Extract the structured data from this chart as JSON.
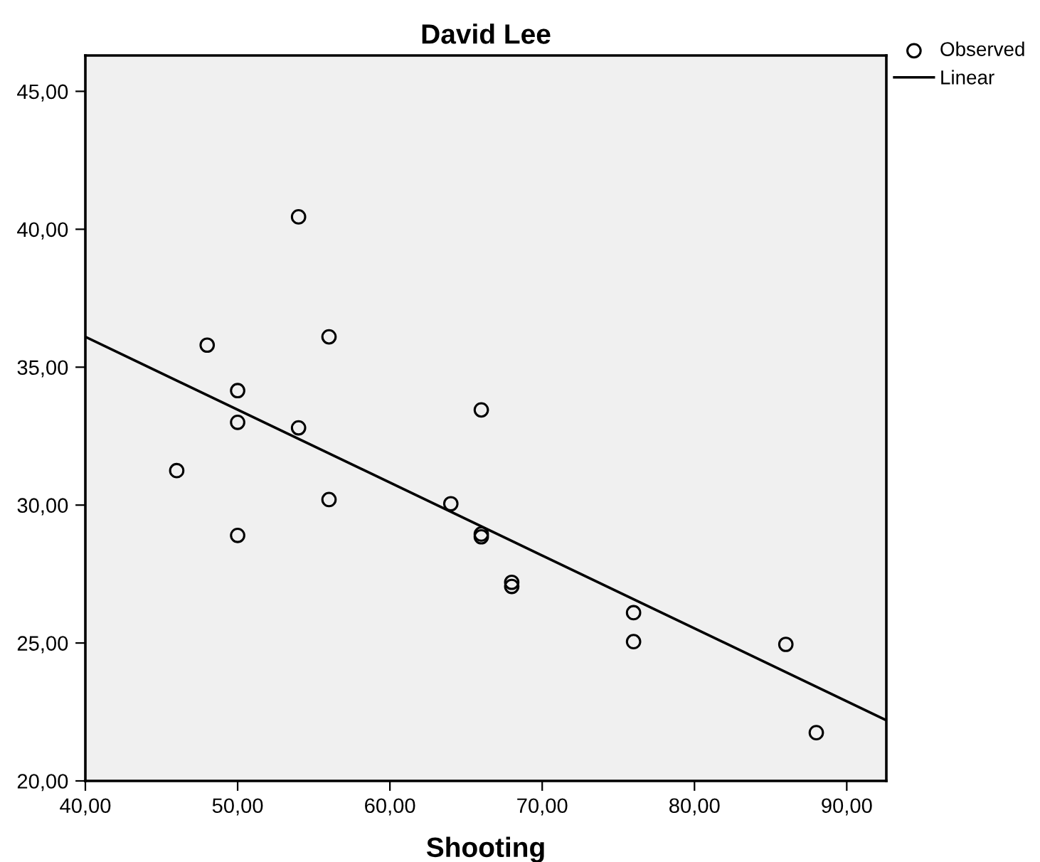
{
  "chart_data": {
    "type": "scatter",
    "title": "David Lee",
    "xlabel": "Shooting",
    "xlim": [
      40,
      92.6
    ],
    "ylim": [
      20,
      46.3
    ],
    "xticks": [
      {
        "value": 40,
        "label": "40,00"
      },
      {
        "value": 50,
        "label": "50,00"
      },
      {
        "value": 60,
        "label": "60,00"
      },
      {
        "value": 70,
        "label": "70,00"
      },
      {
        "value": 80,
        "label": "80,00"
      },
      {
        "value": 90,
        "label": "90,00"
      }
    ],
    "yticks": [
      {
        "value": 20,
        "label": "20,00"
      },
      {
        "value": 25,
        "label": "25,00"
      },
      {
        "value": 30,
        "label": "30,00"
      },
      {
        "value": 35,
        "label": "35,00"
      },
      {
        "value": 40,
        "label": "40,00"
      },
      {
        "value": 45,
        "label": "45,00"
      }
    ],
    "grid": false,
    "legend": "top right",
    "series": [
      {
        "name": "Observed",
        "marker": "circle",
        "color": "#000000",
        "x": [
          46,
          48,
          50,
          50,
          50,
          54,
          54,
          56,
          56,
          64,
          66,
          66,
          66,
          68,
          68,
          76,
          76,
          86,
          88
        ],
        "values": [
          31.25,
          35.8,
          34.15,
          33.0,
          28.9,
          40.45,
          32.8,
          36.1,
          30.2,
          30.05,
          33.45,
          28.95,
          28.85,
          27.2,
          27.05,
          26.1,
          25.05,
          24.95,
          21.75
        ]
      },
      {
        "name": "Linear",
        "type": "line",
        "color": "#000000",
        "x": [
          40,
          92.6
        ],
        "values": [
          36.1,
          22.2
        ]
      }
    ]
  }
}
